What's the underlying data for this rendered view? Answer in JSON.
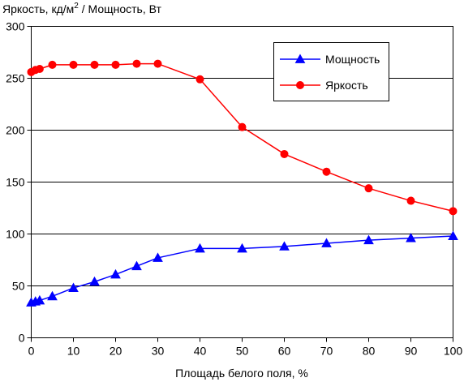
{
  "chart_data": {
    "type": "line",
    "title": "",
    "ylabel_parts": {
      "before_superscript": "Яркость, кд/м",
      "superscript": "2",
      "after_superscript": " / Мощность, Вт"
    },
    "xlabel": "Площадь белого поля, %",
    "xlim": [
      0,
      100
    ],
    "ylim": [
      0,
      300
    ],
    "x_ticks": [
      0,
      10,
      20,
      30,
      40,
      50,
      60,
      70,
      80,
      90,
      100
    ],
    "y_ticks": [
      0,
      50,
      100,
      150,
      200,
      250,
      300
    ],
    "grid": "horizontal",
    "legend_position": "top-right",
    "series": [
      {
        "name": "Мощность",
        "color": "#0000ff",
        "marker": "triangle",
        "x": [
          0,
          1,
          2,
          5,
          10,
          15,
          20,
          25,
          30,
          40,
          50,
          60,
          70,
          80,
          90,
          100
        ],
        "y": [
          34,
          35,
          36,
          40,
          48,
          54,
          61,
          69,
          77,
          86,
          86,
          88,
          91,
          94,
          96,
          98
        ]
      },
      {
        "name": "Яркость",
        "color": "#ff0000",
        "marker": "circle",
        "x": [
          0,
          1,
          2,
          5,
          10,
          15,
          20,
          25,
          30,
          40,
          50,
          60,
          70,
          80,
          90,
          100
        ],
        "y": [
          256,
          258,
          259,
          263,
          263,
          263,
          263,
          264,
          264,
          249,
          203,
          177,
          160,
          144,
          132,
          122
        ]
      }
    ]
  }
}
